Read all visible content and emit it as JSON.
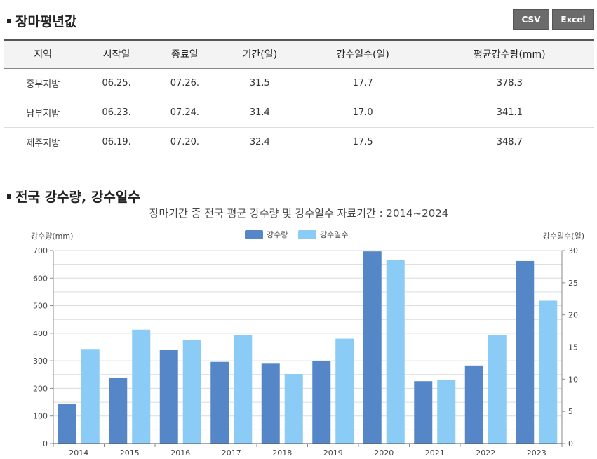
{
  "section1": {
    "title": "장마평년값"
  },
  "buttons": {
    "csv": "CSV",
    "excel": "Excel"
  },
  "table": {
    "headers": [
      "지역",
      "시작일",
      "종료일",
      "기간(일)",
      "강수일수(일)",
      "평균강수량(mm)"
    ],
    "rows": [
      [
        "중부지방",
        "06.25.",
        "07.26.",
        "31.5",
        "17.7",
        "378.3"
      ],
      [
        "남부지방",
        "06.23.",
        "07.24.",
        "31.4",
        "17.0",
        "341.1"
      ],
      [
        "제주지방",
        "06.19.",
        "07.20.",
        "32.4",
        "17.5",
        "348.7"
      ]
    ]
  },
  "section2": {
    "title": "전국 강수량, 강수일수"
  },
  "chart_data": {
    "type": "bar",
    "title": "장마기간 중 전국 평균 강수량 및 강수일수 자료기간 : 2014~2024",
    "ylabel_left": "강수량(mm)",
    "ylabel_right": "강수일수(일)",
    "categories": [
      "2014",
      "2015",
      "2016",
      "2017",
      "2018",
      "2019",
      "2020",
      "2021",
      "2022",
      "2023"
    ],
    "ylim_left": [
      0,
      700
    ],
    "yticks_left": [
      0,
      100,
      200,
      300,
      400,
      500,
      600,
      700
    ],
    "ylim_right": [
      0,
      30
    ],
    "yticks_right": [
      0,
      5,
      10,
      15,
      20,
      25,
      30
    ],
    "legend_placement": "top-center",
    "grid": true,
    "series": [
      {
        "name": "강수량",
        "axis": "left",
        "color": "#5587c8",
        "values": [
          145,
          239,
          340,
          296,
          292,
          299,
          697,
          226,
          283,
          662
        ]
      },
      {
        "name": "강수일수",
        "axis": "right",
        "color": "#8accf5",
        "values": [
          14.7,
          17.7,
          16.1,
          16.9,
          10.8,
          16.3,
          28.5,
          9.9,
          16.9,
          22.2
        ]
      }
    ]
  }
}
